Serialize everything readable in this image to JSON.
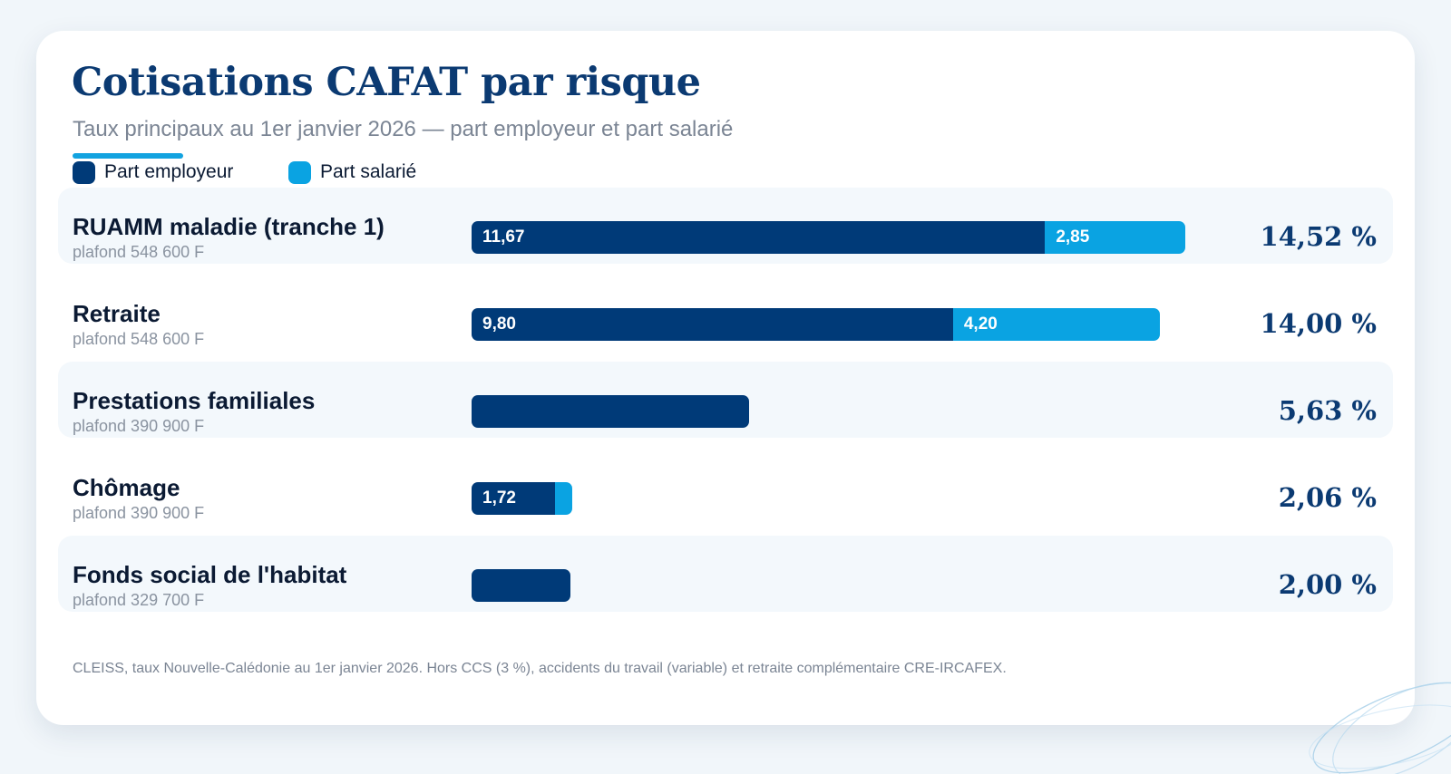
{
  "chart_data": {
    "type": "bar",
    "stacked": true,
    "orientation": "horizontal",
    "title": "Cotisations CAFAT par risque",
    "subtitle": "Taux principaux au 1er janvier 2026 — part employeur et part salarié",
    "legend_placement": "top-left",
    "grid": false,
    "categories": [
      "RUAMM maladie (tranche 1)",
      "Retraite",
      "Prestations familiales",
      "Chômage",
      "Fonds social de l'habitat"
    ],
    "category_notes": [
      "plafond 548 600 F",
      "plafond 548 600 F",
      "plafond 390 900 F",
      "plafond 390 900 F",
      "plafond 329 700 F"
    ],
    "series": [
      {
        "name": "Part employeur",
        "values": [
          11.67,
          9.8,
          5.63,
          1.72,
          2.0
        ],
        "value_labels": [
          "11,67",
          "9,80",
          "",
          "1,72",
          ""
        ],
        "color": "#003a78"
      },
      {
        "name": "Part salarié",
        "values": [
          2.85,
          4.2,
          0,
          0.34,
          0
        ],
        "value_labels": [
          "2,85",
          "4,20",
          "",
          "",
          ""
        ],
        "color": "#0aa3e2"
      }
    ],
    "totals": [
      "14,52 %",
      "14,00 %",
      "5,63 %",
      "2,06 %",
      "2,00 %"
    ],
    "xlim": [
      0,
      14.52
    ],
    "footnote": "CLEISS, taux Nouvelle-Calédonie au 1er janvier 2026. Hors CCS (3 %), accidents du travail (variable) et retraite complémentaire CRE-IRCAFEX."
  },
  "colors": {
    "employer": "#003a78",
    "employee": "#0aa3e2",
    "title": "#0b3a72",
    "accent": "#12a3e0",
    "band": "#f3f8fc"
  }
}
